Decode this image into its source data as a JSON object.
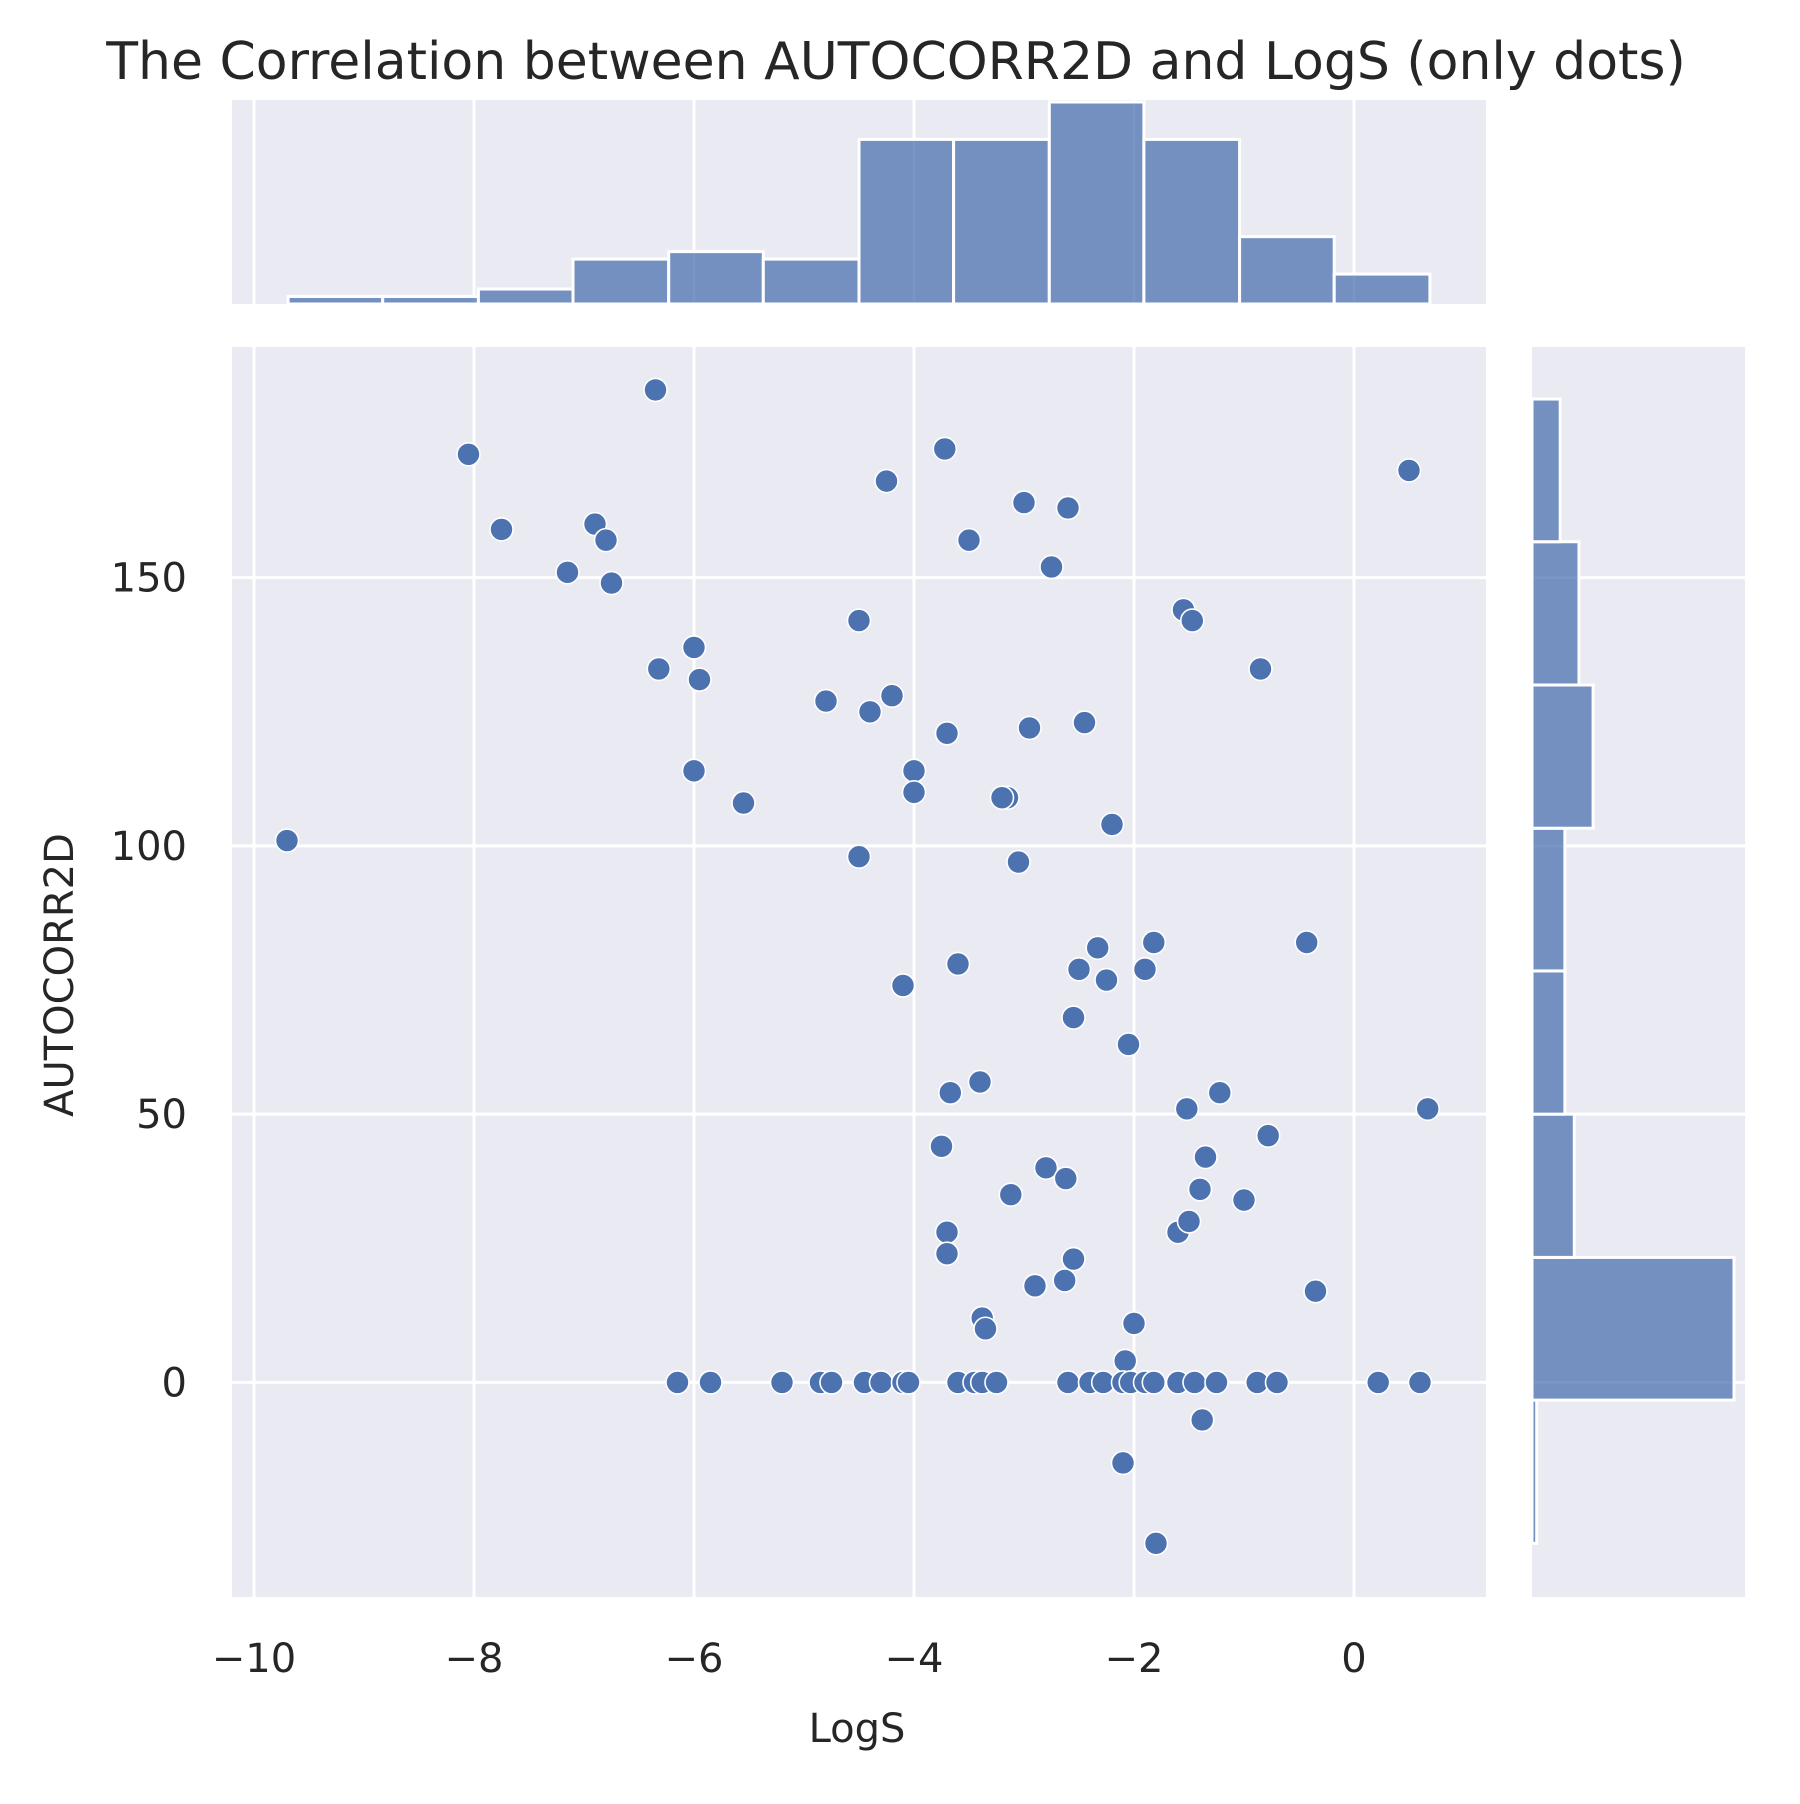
{
  "chart_data": {
    "type": "scatter",
    "title": "The Correlation between AUTOCORR2D and LogS (only dots)",
    "xlabel": "LogS",
    "ylabel": "AUTOCORR2D",
    "xlim": [
      -10.2,
      1.2
    ],
    "ylim": [
      -40,
      193
    ],
    "xticks": [
      -10,
      -8,
      -6,
      -4,
      -2,
      0
    ],
    "xtick_labels": [
      "−10",
      "−8",
      "−6",
      "−4",
      "−2",
      "0"
    ],
    "yticks": [
      0,
      50,
      100,
      150
    ],
    "ytick_labels": [
      "0",
      "50",
      "100",
      "150"
    ],
    "grid": true,
    "background_color": "#eaeaf2",
    "marker_color": "#4c72b0",
    "hist_color": "#4c72b0",
    "points": [
      {
        "x": -9.7,
        "y": 101
      },
      {
        "x": -8.05,
        "y": 173
      },
      {
        "x": -7.75,
        "y": 159
      },
      {
        "x": -7.15,
        "y": 151
      },
      {
        "x": -6.9,
        "y": 160
      },
      {
        "x": -6.8,
        "y": 157
      },
      {
        "x": -6.75,
        "y": 149
      },
      {
        "x": -6.35,
        "y": 185
      },
      {
        "x": -6.32,
        "y": 133
      },
      {
        "x": -6.0,
        "y": 137
      },
      {
        "x": -5.95,
        "y": 131
      },
      {
        "x": -6.0,
        "y": 114
      },
      {
        "x": -5.55,
        "y": 108
      },
      {
        "x": -4.8,
        "y": 127
      },
      {
        "x": -4.5,
        "y": 142
      },
      {
        "x": -4.4,
        "y": 125
      },
      {
        "x": -4.25,
        "y": 168
      },
      {
        "x": -4.2,
        "y": 128
      },
      {
        "x": -4.0,
        "y": 114
      },
      {
        "x": -4.0,
        "y": 110
      },
      {
        "x": -4.5,
        "y": 98
      },
      {
        "x": -3.72,
        "y": 174
      },
      {
        "x": -3.7,
        "y": 121
      },
      {
        "x": -3.5,
        "y": 157
      },
      {
        "x": -3.0,
        "y": 164
      },
      {
        "x": -2.6,
        "y": 163
      },
      {
        "x": -2.75,
        "y": 152
      },
      {
        "x": -2.95,
        "y": 122
      },
      {
        "x": -2.45,
        "y": 123
      },
      {
        "x": -3.15,
        "y": 109
      },
      {
        "x": -3.2,
        "y": 109
      },
      {
        "x": -3.05,
        "y": 97
      },
      {
        "x": -2.2,
        "y": 104
      },
      {
        "x": -1.55,
        "y": 144
      },
      {
        "x": -1.47,
        "y": 142
      },
      {
        "x": -0.85,
        "y": 133
      },
      {
        "x": 0.5,
        "y": 170
      },
      {
        "x": -4.1,
        "y": 74
      },
      {
        "x": -3.6,
        "y": 78
      },
      {
        "x": -2.5,
        "y": 77
      },
      {
        "x": -2.33,
        "y": 81
      },
      {
        "x": -2.25,
        "y": 75
      },
      {
        "x": -1.9,
        "y": 77
      },
      {
        "x": -1.82,
        "y": 82
      },
      {
        "x": -0.43,
        "y": 82
      },
      {
        "x": -2.55,
        "y": 68
      },
      {
        "x": -2.05,
        "y": 63
      },
      {
        "x": -3.67,
        "y": 54
      },
      {
        "x": -3.4,
        "y": 56
      },
      {
        "x": -1.52,
        "y": 51
      },
      {
        "x": -1.22,
        "y": 54
      },
      {
        "x": 0.67,
        "y": 51
      },
      {
        "x": -0.78,
        "y": 46
      },
      {
        "x": -3.75,
        "y": 44
      },
      {
        "x": -2.8,
        "y": 40
      },
      {
        "x": -2.62,
        "y": 38
      },
      {
        "x": -1.35,
        "y": 42
      },
      {
        "x": -3.12,
        "y": 35
      },
      {
        "x": -1.4,
        "y": 36
      },
      {
        "x": -1.0,
        "y": 34
      },
      {
        "x": -1.6,
        "y": 28
      },
      {
        "x": -1.5,
        "y": 30
      },
      {
        "x": -3.7,
        "y": 28
      },
      {
        "x": -3.7,
        "y": 24
      },
      {
        "x": -2.55,
        "y": 23
      },
      {
        "x": -2.63,
        "y": 19
      },
      {
        "x": -2.9,
        "y": 18
      },
      {
        "x": -0.35,
        "y": 17
      },
      {
        "x": -3.38,
        "y": 12
      },
      {
        "x": -3.35,
        "y": 10
      },
      {
        "x": -2.0,
        "y": 11
      },
      {
        "x": -2.08,
        "y": 4
      },
      {
        "x": -6.15,
        "y": 0
      },
      {
        "x": -5.85,
        "y": 0
      },
      {
        "x": -5.2,
        "y": 0
      },
      {
        "x": -4.85,
        "y": 0
      },
      {
        "x": -4.75,
        "y": 0
      },
      {
        "x": -4.45,
        "y": 0
      },
      {
        "x": -4.3,
        "y": 0
      },
      {
        "x": -4.1,
        "y": 0
      },
      {
        "x": -4.05,
        "y": 0
      },
      {
        "x": -3.6,
        "y": 0
      },
      {
        "x": -3.45,
        "y": 0
      },
      {
        "x": -3.38,
        "y": 0
      },
      {
        "x": -3.25,
        "y": 0
      },
      {
        "x": -2.6,
        "y": 0
      },
      {
        "x": -2.4,
        "y": 0
      },
      {
        "x": -2.28,
        "y": 0
      },
      {
        "x": -2.1,
        "y": 0
      },
      {
        "x": -2.03,
        "y": 0
      },
      {
        "x": -1.9,
        "y": 0
      },
      {
        "x": -1.82,
        "y": 0
      },
      {
        "x": -1.6,
        "y": 0
      },
      {
        "x": -1.45,
        "y": 0
      },
      {
        "x": -1.25,
        "y": 0
      },
      {
        "x": -0.88,
        "y": 0
      },
      {
        "x": -0.7,
        "y": 0
      },
      {
        "x": 0.22,
        "y": 0
      },
      {
        "x": 0.6,
        "y": 0
      },
      {
        "x": -1.38,
        "y": -7
      },
      {
        "x": -2.1,
        "y": -15
      },
      {
        "x": -1.8,
        "y": -30
      }
    ],
    "x_histogram": {
      "bin_edges": [
        -9.69,
        -8.83,
        -7.96,
        -7.1,
        -6.23,
        -5.37,
        -4.5,
        -3.64,
        -2.77,
        -1.91,
        -1.04,
        -0.18,
        0.69
      ],
      "counts": [
        1,
        1,
        2,
        6,
        7,
        6,
        22,
        22,
        27,
        22,
        9,
        4
      ]
    },
    "y_histogram": {
      "bin_edges": [
        -30,
        -3.3,
        23.3,
        50,
        76.7,
        103.3,
        130,
        156.7,
        183.3
      ],
      "counts": [
        1,
        43,
        9,
        7,
        7,
        13,
        10,
        6
      ]
    }
  }
}
